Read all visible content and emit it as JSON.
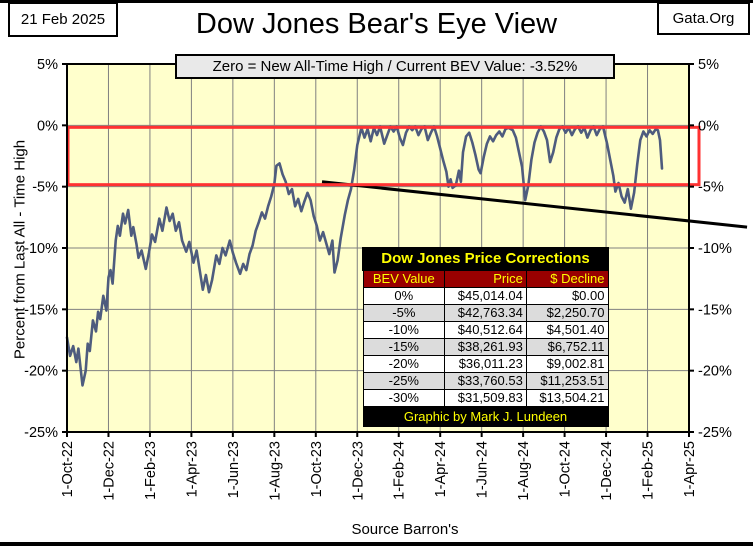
{
  "header": {
    "date": "21 Feb 2025",
    "site": "Gata.Org",
    "title": "Dow Jones Bear's Eye View",
    "subtitle": "Zero = New All-Time High / Current BEV Value:  -3.52%"
  },
  "axes": {
    "y_axis_title": "Percent from  Last All - Time  High",
    "y_ticks": [
      {
        "value": 5,
        "label": "5%"
      },
      {
        "value": 0,
        "label": "0%"
      },
      {
        "value": -5,
        "label": "-5%"
      },
      {
        "value": -10,
        "label": "-10%"
      },
      {
        "value": -15,
        "label": "-15%"
      },
      {
        "value": -20,
        "label": "-20%"
      },
      {
        "value": -25,
        "label": "-25%"
      }
    ],
    "x_ticks": [
      {
        "months": 0,
        "label": "1-Oct-22"
      },
      {
        "months": 2,
        "label": "1-Dec-22"
      },
      {
        "months": 4,
        "label": "1-Feb-23"
      },
      {
        "months": 6,
        "label": "1-Apr-23"
      },
      {
        "months": 8,
        "label": "1-Jun-23"
      },
      {
        "months": 10,
        "label": "1-Aug-23"
      },
      {
        "months": 12,
        "label": "1-Oct-23"
      },
      {
        "months": 14,
        "label": "1-Dec-23"
      },
      {
        "months": 16,
        "label": "1-Feb-24"
      },
      {
        "months": 18,
        "label": "1-Apr-24"
      },
      {
        "months": 20,
        "label": "1-Jun-24"
      },
      {
        "months": 22,
        "label": "1-Aug-24"
      },
      {
        "months": 24,
        "label": "1-Oct-24"
      },
      {
        "months": 26,
        "label": "1-Dec-24"
      },
      {
        "months": 28,
        "label": "1-Feb-25"
      },
      {
        "months": 30,
        "label": "1-Apr-25"
      }
    ],
    "source": "Source Barron's"
  },
  "table": {
    "title": "Dow Jones Price Corrections",
    "columns": [
      "BEV Value",
      "Price",
      "$ Decline"
    ],
    "rows": [
      [
        "0%",
        "$45,014.04",
        "$0.00"
      ],
      [
        "-5%",
        "$42,763.34",
        "$2,250.70"
      ],
      [
        "-10%",
        "$40,512.64",
        "$4,501.40"
      ],
      [
        "-15%",
        "$38,261.93",
        "$6,752.11"
      ],
      [
        "-20%",
        "$36,011.23",
        "$9,002.81"
      ],
      [
        "-25%",
        "$33,760.53",
        "$11,253.51"
      ],
      [
        "-30%",
        "$31,509.83",
        "$13,504.21"
      ]
    ],
    "footer": "Graphic by Mark J. Lundeen"
  },
  "chart_data": {
    "type": "line",
    "title": "Dow Jones Bear's Eye View",
    "subtitle": "Zero = New All-Time High / Current BEV Value: -3.52%",
    "ylabel": "Percent from Last All - Time High",
    "ylim": [
      -25,
      5
    ],
    "x_start": "1-Oct-22",
    "x_end": "1-Apr-25",
    "x_unit": "months since 1-Oct-22",
    "current_bev_pct": -3.52,
    "grid": true,
    "annotations": {
      "highlight_band_pct": [
        0,
        -5
      ],
      "trend_line_points": [
        [
          12.3,
          -4.6
        ],
        [
          32.8,
          -8.3
        ]
      ]
    },
    "colors": {
      "plot_bg": "#ffffcc",
      "line": "#4e5c7e",
      "band": "#ff3232",
      "trend": "#000000",
      "grid": "#808080",
      "table_header_bg": "#990000",
      "accent_yellow": "#ffff00"
    },
    "series": [
      {
        "name": "Dow Jones BEV (% from last all-time high)",
        "points": [
          [
            0,
            -17.3
          ],
          [
            0.15,
            -18.8
          ],
          [
            0.3,
            -18
          ],
          [
            0.45,
            -19.3
          ],
          [
            0.55,
            -18.2
          ],
          [
            0.75,
            -21.2
          ],
          [
            0.9,
            -20
          ],
          [
            1,
            -17.8
          ],
          [
            1.1,
            -18.4
          ],
          [
            1.25,
            -15.9
          ],
          [
            1.4,
            -16.8
          ],
          [
            1.5,
            -15.2
          ],
          [
            1.6,
            -15.8
          ],
          [
            1.75,
            -13.9
          ],
          [
            1.9,
            -15.1
          ],
          [
            2,
            -12.4
          ],
          [
            2.1,
            -11.8
          ],
          [
            2.2,
            -12.9
          ],
          [
            2.35,
            -9.4
          ],
          [
            2.45,
            -8.2
          ],
          [
            2.55,
            -9
          ],
          [
            2.7,
            -7.2
          ],
          [
            2.8,
            -8
          ],
          [
            2.95,
            -6.9
          ],
          [
            3.1,
            -9
          ],
          [
            3.2,
            -8.3
          ],
          [
            3.35,
            -9.7
          ],
          [
            3.45,
            -10.8
          ],
          [
            3.6,
            -10.2
          ],
          [
            3.8,
            -11.7
          ],
          [
            3.95,
            -10.4
          ],
          [
            4.1,
            -8.9
          ],
          [
            4.25,
            -9.5
          ],
          [
            4.45,
            -7.6
          ],
          [
            4.6,
            -8.6
          ],
          [
            4.8,
            -6.7
          ],
          [
            4.95,
            -7.8
          ],
          [
            5.1,
            -7.2
          ],
          [
            5.25,
            -8.6
          ],
          [
            5.4,
            -7.9
          ],
          [
            5.55,
            -9.4
          ],
          [
            5.75,
            -10.3
          ],
          [
            5.9,
            -9.5
          ],
          [
            6.1,
            -11.2
          ],
          [
            6.25,
            -10.2
          ],
          [
            6.4,
            -11.8
          ],
          [
            6.55,
            -13.4
          ],
          [
            6.7,
            -12.2
          ],
          [
            6.85,
            -13.6
          ],
          [
            7,
            -12.6
          ],
          [
            7.2,
            -10.6
          ],
          [
            7.35,
            -11.3
          ],
          [
            7.5,
            -10
          ],
          [
            7.65,
            -10.6
          ],
          [
            7.85,
            -9.4
          ],
          [
            8,
            -10.4
          ],
          [
            8.15,
            -11.2
          ],
          [
            8.35,
            -12.1
          ],
          [
            8.5,
            -11.3
          ],
          [
            8.65,
            -11.8
          ],
          [
            8.8,
            -10.5
          ],
          [
            8.95,
            -9.8
          ],
          [
            9.1,
            -8.6
          ],
          [
            9.25,
            -7.9
          ],
          [
            9.4,
            -7.1
          ],
          [
            9.55,
            -7.6
          ],
          [
            9.7,
            -6.6
          ],
          [
            9.85,
            -5.8
          ],
          [
            10,
            -4.8
          ],
          [
            10.1,
            -3.3
          ],
          [
            10.25,
            -3.1
          ],
          [
            10.4,
            -4
          ],
          [
            10.55,
            -4.6
          ],
          [
            10.7,
            -5.6
          ],
          [
            10.85,
            -5.2
          ],
          [
            11,
            -6.6
          ],
          [
            11.15,
            -6
          ],
          [
            11.3,
            -7
          ],
          [
            11.45,
            -6.2
          ],
          [
            11.6,
            -5.5
          ],
          [
            11.75,
            -6.1
          ],
          [
            11.9,
            -7.4
          ],
          [
            12.05,
            -8.2
          ],
          [
            12.2,
            -9.4
          ],
          [
            12.35,
            -8.7
          ],
          [
            12.5,
            -9.6
          ],
          [
            12.65,
            -10.5
          ],
          [
            12.8,
            -9.4
          ],
          [
            12.9,
            -12
          ],
          [
            13.05,
            -11
          ],
          [
            13.2,
            -9.2
          ],
          [
            13.4,
            -7.3
          ],
          [
            13.55,
            -6.1
          ],
          [
            13.7,
            -5.2
          ],
          [
            13.85,
            -3.6
          ],
          [
            14,
            -1.6
          ],
          [
            14.2,
            -0.2
          ],
          [
            14.35,
            -1
          ],
          [
            14.5,
            -0.3
          ],
          [
            14.65,
            -1.3
          ],
          [
            14.8,
            -0.2
          ],
          [
            14.95,
            -0.8
          ],
          [
            15.1,
            -0.1
          ],
          [
            15.3,
            -1.5
          ],
          [
            15.45,
            -0.8
          ],
          [
            15.6,
            -0.1
          ],
          [
            15.75,
            -0.5
          ],
          [
            15.9,
            -0.1
          ],
          [
            16.05,
            -1
          ],
          [
            16.2,
            -1.6
          ],
          [
            16.35,
            -0.6
          ],
          [
            16.5,
            -0.1
          ],
          [
            16.65,
            -0.4
          ],
          [
            16.8,
            -0.1
          ],
          [
            16.95,
            -0.8
          ],
          [
            17.1,
            -0.3
          ],
          [
            17.25,
            -0.1
          ],
          [
            17.4,
            -1.2
          ],
          [
            17.55,
            -0.6
          ],
          [
            17.7,
            -0.1
          ],
          [
            17.85,
            -0.9
          ],
          [
            18,
            -1.9
          ],
          [
            18.15,
            -2.9
          ],
          [
            18.3,
            -3.8
          ],
          [
            18.4,
            -5
          ],
          [
            18.5,
            -4.4
          ],
          [
            18.6,
            -5.1
          ],
          [
            18.75,
            -4.9
          ],
          [
            18.9,
            -3.7
          ],
          [
            19,
            -4.6
          ],
          [
            19.1,
            -2.2
          ],
          [
            19.25,
            -0.9
          ],
          [
            19.4,
            -0.6
          ],
          [
            19.55,
            -1.4
          ],
          [
            19.7,
            -2.4
          ],
          [
            19.85,
            -3.6
          ],
          [
            19.95,
            -3.9
          ],
          [
            20.1,
            -2.6
          ],
          [
            20.25,
            -1.5
          ],
          [
            20.4,
            -0.9
          ],
          [
            20.55,
            -1.3
          ],
          [
            20.7,
            -0.8
          ],
          [
            20.85,
            -0.5
          ],
          [
            21,
            -0.9
          ],
          [
            21.15,
            -0.3
          ],
          [
            21.3,
            -0.2
          ],
          [
            21.5,
            -0.4
          ],
          [
            21.65,
            -1
          ],
          [
            21.8,
            -2.2
          ],
          [
            21.95,
            -3.4
          ],
          [
            22.1,
            -6.1
          ],
          [
            22.25,
            -4.9
          ],
          [
            22.4,
            -2.8
          ],
          [
            22.55,
            -1.4
          ],
          [
            22.7,
            -0.6
          ],
          [
            22.85,
            -0.1
          ],
          [
            23,
            -0.5
          ],
          [
            23.15,
            -1.2
          ],
          [
            23.3,
            -3
          ],
          [
            23.45,
            -2.2
          ],
          [
            23.6,
            -1
          ],
          [
            23.75,
            -0.3
          ],
          [
            23.9,
            -0.1
          ],
          [
            24.05,
            -0.6
          ],
          [
            24.2,
            -0.2
          ],
          [
            24.35,
            -0.8
          ],
          [
            24.5,
            -0.3
          ],
          [
            24.65,
            -0.1
          ],
          [
            24.8,
            -0.6
          ],
          [
            24.95,
            -0.2
          ],
          [
            25.1,
            -1
          ],
          [
            25.25,
            -0.4
          ],
          [
            25.4,
            -0.1
          ],
          [
            25.55,
            -0.8
          ],
          [
            25.7,
            -0.3
          ],
          [
            25.85,
            -0.1
          ],
          [
            26.05,
            -1.5
          ],
          [
            26.2,
            -2.8
          ],
          [
            26.35,
            -4.1
          ],
          [
            26.45,
            -5.4
          ],
          [
            26.6,
            -4.7
          ],
          [
            26.75,
            -5.8
          ],
          [
            26.9,
            -6.3
          ],
          [
            27.05,
            -5.2
          ],
          [
            27.2,
            -6.8
          ],
          [
            27.35,
            -5.5
          ],
          [
            27.5,
            -3.2
          ],
          [
            27.65,
            -1.2
          ],
          [
            27.8,
            -0.5
          ],
          [
            27.95,
            -0.9
          ],
          [
            28.1,
            -0.4
          ],
          [
            28.25,
            -0.7
          ],
          [
            28.4,
            -0.3
          ],
          [
            28.5,
            -0.4
          ],
          [
            28.6,
            -1.2
          ],
          [
            28.7,
            -3.52
          ]
        ]
      }
    ]
  }
}
